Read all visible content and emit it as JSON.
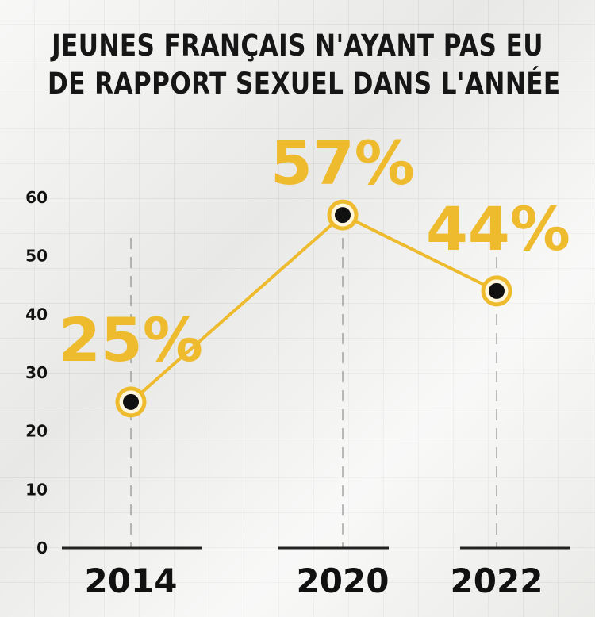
{
  "chart_data": {
    "type": "line",
    "title_lines": [
      "JEUNES FRANÇAIS N'AYANT PAS EU",
      "DE RAPPORT SEXUEL DANS L'ANNÉE"
    ],
    "x": [
      "2014",
      "2020",
      "2022"
    ],
    "values": [
      25,
      57,
      44
    ],
    "data_labels": [
      "25%",
      "57%",
      "44%"
    ],
    "y_ticks": [
      "0",
      "10",
      "20",
      "30",
      "40",
      "50",
      "60"
    ],
    "ylim": [
      0,
      60
    ],
    "grid": true,
    "line_color": "#efbb2e",
    "marker_color": "#111111",
    "label_color": "#efbb2e"
  }
}
